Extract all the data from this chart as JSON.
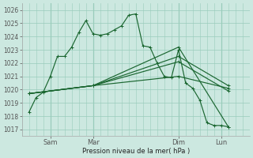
{
  "background_color": "#cce8e0",
  "grid_color": "#99ccbb",
  "line_color": "#1a6630",
  "ylabel": "Pression niveau de la mer( hPa )",
  "ylim": [
    1016.5,
    1026.5
  ],
  "yticks": [
    1017,
    1018,
    1019,
    1020,
    1021,
    1022,
    1023,
    1024,
    1025,
    1026
  ],
  "xtick_positions": [
    2,
    5,
    11,
    14
  ],
  "xtick_labels": [
    "Sam",
    "Mar",
    "Dim",
    "Lun"
  ],
  "xlim": [
    0,
    16
  ],
  "line1_x": [
    0.5,
    1,
    1.5,
    2,
    2.5,
    3,
    3.5,
    4,
    4.5,
    5,
    5.5,
    6,
    6.5,
    7,
    7.5,
    8,
    8.5,
    9,
    9.5,
    10,
    10.5,
    11,
    11.5,
    12,
    12.5,
    13,
    13.5,
    14,
    14.5
  ],
  "line1_y": [
    1018.3,
    1019.4,
    1019.8,
    1021.0,
    1022.5,
    1022.5,
    1023.2,
    1024.3,
    1025.2,
    1024.2,
    1024.1,
    1024.2,
    1024.5,
    1024.8,
    1025.6,
    1025.7,
    1023.3,
    1023.2,
    1022.0,
    1021.0,
    1020.9,
    1023.0,
    1020.5,
    1020.1,
    1019.2,
    1017.5,
    1017.3,
    1017.3,
    1017.2
  ],
  "line2_x": [
    0.5,
    5,
    11,
    14.5
  ],
  "line2_y": [
    1019.7,
    1020.3,
    1023.2,
    1017.2
  ],
  "line3_x": [
    0.5,
    5,
    11,
    14.5
  ],
  "line3_y": [
    1019.7,
    1020.3,
    1022.1,
    1019.9
  ],
  "line4_x": [
    0.5,
    5,
    11,
    14.5
  ],
  "line4_y": [
    1019.7,
    1020.3,
    1022.5,
    1020.3
  ],
  "line5_x": [
    0.5,
    5,
    11,
    14.5
  ],
  "line5_y": [
    1019.7,
    1020.3,
    1021.0,
    1020.1
  ]
}
